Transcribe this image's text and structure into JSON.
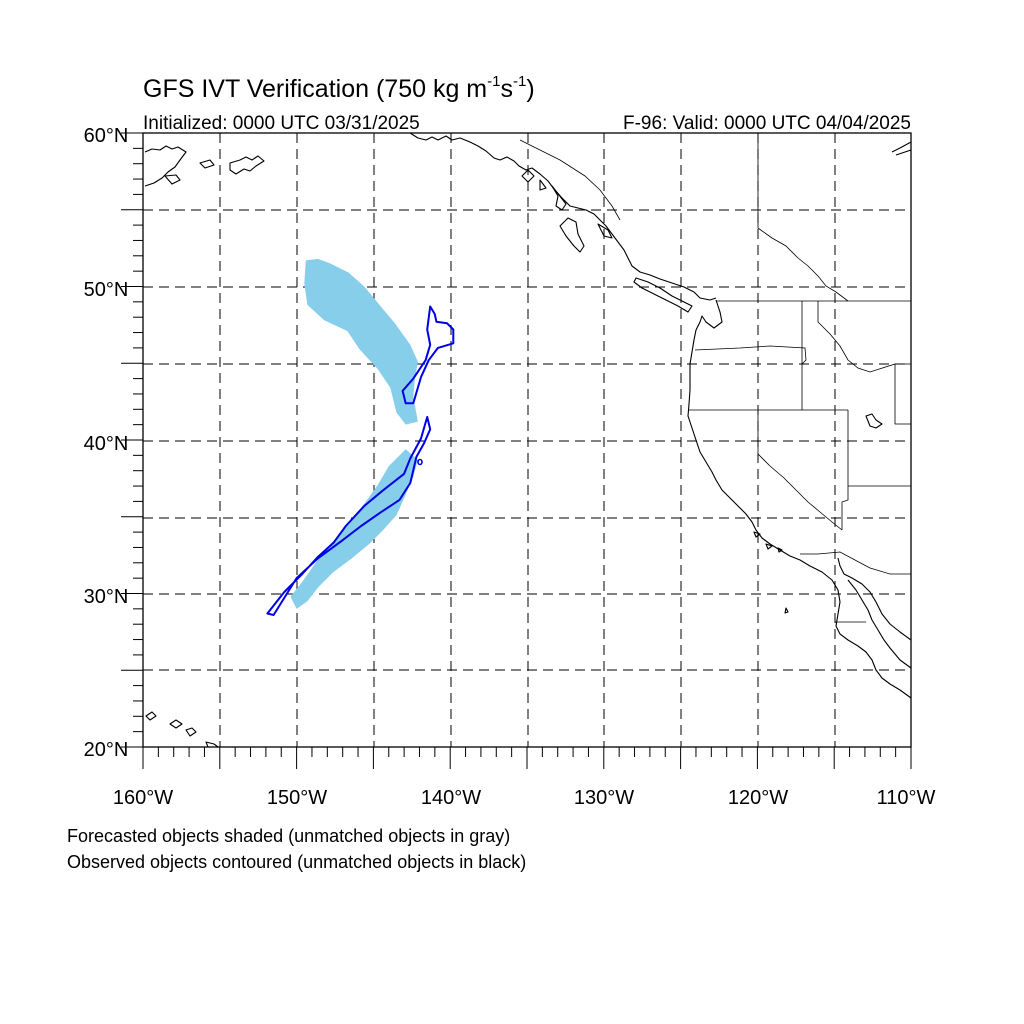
{
  "title_main": "GFS IVT Verification (750 kg m",
  "title_sup1": "-1",
  "title_mid": "s",
  "title_sup2": "-1",
  "title_end": ")",
  "initialized": "Initialized: 0000 UTC 03/31/2025",
  "valid": "F-96: Valid: 0000 UTC 04/04/2025",
  "lat_labels": [
    "60°N",
    "50°N",
    "40°N",
    "30°N",
    "20°N"
  ],
  "lon_labels": [
    "160°W",
    "150°W",
    "140°W",
    "130°W",
    "120°W",
    "110°W"
  ],
  "footnote_1": "Forecasted objects shaded (unmatched objects in gray)",
  "footnote_2": "Observed objects contoured (unmatched objects in black)",
  "extent": {
    "lon": [
      -160,
      -110
    ],
    "lat": [
      20,
      60
    ]
  },
  "colors": {
    "forecast_fill": "#87ceeb",
    "observed_contour": "#0000e6",
    "grid": "#000000"
  },
  "map_data": {
    "forecast_objects": [
      [
        [
          -149.4,
          51.7
        ],
        [
          -148.6,
          51.8
        ],
        [
          -147.8,
          51.5
        ],
        [
          -146.6,
          50.9
        ],
        [
          -145.6,
          50.0
        ],
        [
          -144.6,
          48.8
        ],
        [
          -143.6,
          47.6
        ],
        [
          -142.6,
          46.2
        ],
        [
          -142.1,
          45.1
        ],
        [
          -142.3,
          44.0
        ],
        [
          -142.4,
          42.8
        ],
        [
          -142.1,
          41.2
        ],
        [
          -142.9,
          41.0
        ],
        [
          -143.5,
          41.8
        ],
        [
          -143.9,
          43.4
        ],
        [
          -144.7,
          44.6
        ],
        [
          -145.9,
          45.9
        ],
        [
          -146.7,
          47.1
        ],
        [
          -148.2,
          47.8
        ],
        [
          -149.3,
          48.8
        ],
        [
          -149.5,
          50.2
        ]
      ],
      [
        [
          -149.3,
          29.5
        ],
        [
          -148.6,
          30.4
        ],
        [
          -147.6,
          31.4
        ],
        [
          -146.4,
          32.3
        ],
        [
          -145.3,
          33.2
        ],
        [
          -144.4,
          34.1
        ],
        [
          -143.5,
          35.1
        ],
        [
          -143.0,
          36.2
        ],
        [
          -142.4,
          37.6
        ],
        [
          -142.1,
          38.7
        ],
        [
          -142.9,
          39.4
        ],
        [
          -144.0,
          38.3
        ],
        [
          -144.7,
          37.1
        ],
        [
          -145.7,
          35.7
        ],
        [
          -146.8,
          34.3
        ],
        [
          -147.8,
          33.2
        ],
        [
          -148.4,
          32.5
        ],
        [
          -148.9,
          31.8
        ],
        [
          -149.6,
          30.8
        ],
        [
          -150.4,
          29.8
        ],
        [
          -150.0,
          29.0
        ]
      ]
    ],
    "observed_objects": [
      [
        [
          -141.3,
          48.7
        ],
        [
          -141.0,
          48.2
        ],
        [
          -140.9,
          47.7
        ],
        [
          -140.2,
          47.6
        ],
        [
          -139.8,
          47.2
        ],
        [
          -139.8,
          46.3
        ],
        [
          -140.8,
          46.0
        ],
        [
          -141.4,
          45.2
        ],
        [
          -141.9,
          44.1
        ],
        [
          -142.4,
          42.4
        ],
        [
          -142.9,
          42.4
        ],
        [
          -143.1,
          43.2
        ],
        [
          -142.4,
          44.0
        ],
        [
          -141.6,
          45.2
        ],
        [
          -141.3,
          46.2
        ],
        [
          -141.5,
          47.2
        ]
      ],
      [
        [
          -141.5,
          41.5
        ],
        [
          -141.3,
          40.7
        ],
        [
          -141.7,
          39.8
        ],
        [
          -142.2,
          38.9
        ],
        [
          -142.6,
          37.2
        ],
        [
          -143.3,
          36.1
        ],
        [
          -144.5,
          35.3
        ],
        [
          -145.8,
          34.4
        ],
        [
          -147.1,
          33.4
        ],
        [
          -148.6,
          32.3
        ],
        [
          -150.0,
          31.0
        ],
        [
          -151.5,
          28.6
        ],
        [
          -151.9,
          28.7
        ],
        [
          -150.8,
          30.1
        ],
        [
          -149.6,
          31.3
        ],
        [
          -148.6,
          32.4
        ],
        [
          -147.6,
          33.3
        ],
        [
          -146.8,
          34.4
        ],
        [
          -145.6,
          35.7
        ],
        [
          -144.4,
          36.7
        ],
        [
          -143.0,
          37.8
        ],
        [
          -142.6,
          38.8
        ],
        [
          -141.9,
          40.1
        ]
      ]
    ]
  }
}
